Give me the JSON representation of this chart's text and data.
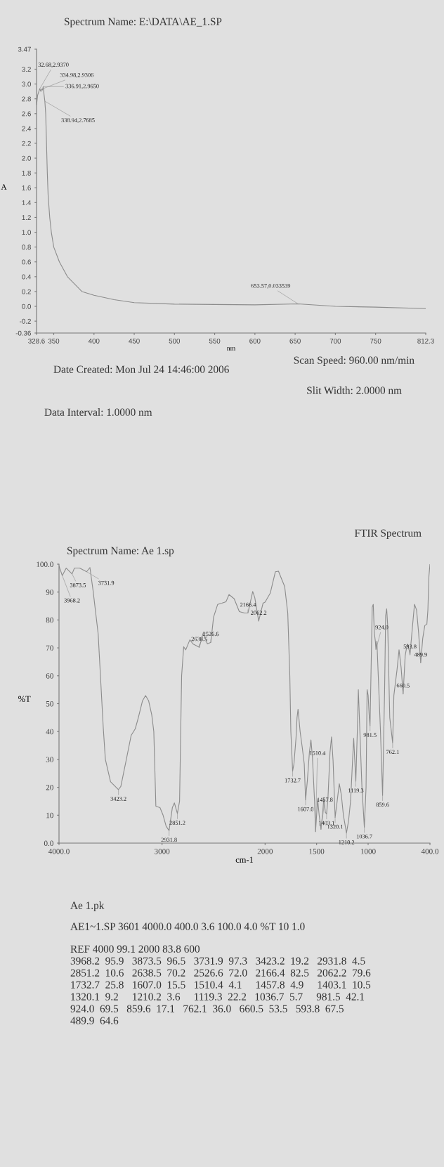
{
  "chart_data": [
    {
      "type": "line",
      "title": "Spectrum Name: E:\\DATA\\AE_1.SP",
      "xlabel": "nm",
      "ylabel": "A",
      "x": [
        328.6,
        330,
        331.5,
        332.68,
        334,
        334.98,
        336,
        336.91,
        338,
        338.94,
        340,
        341,
        342,
        343,
        345,
        347,
        350,
        357,
        367,
        385,
        400,
        425,
        450,
        500,
        550,
        600,
        653.57,
        700,
        750,
        812.3
      ],
      "series": [
        {
          "color": "#8c8c8c",
          "values": [
            2.72,
            2.85,
            2.9,
            2.937,
            2.9,
            2.9306,
            2.92,
            2.965,
            2.85,
            2.7685,
            2.6,
            2.2,
            1.8,
            1.5,
            1.2,
            1.0,
            0.8,
            0.6,
            0.4,
            0.2,
            0.15,
            0.09,
            0.05,
            0.03,
            0.025,
            0.02,
            0.033539,
            0.0,
            -0.01,
            -0.03
          ]
        }
      ],
      "xlim": [
        328.6,
        812.3
      ],
      "xticks": [
        328.6,
        350,
        400,
        450,
        500,
        550,
        600,
        650,
        700,
        750,
        812.3
      ],
      "ylim": [
        -0.36,
        3.47
      ],
      "yticks": [
        -0.36,
        -0.2,
        {
          "value": 0,
          "label": "0.0"
        },
        0.2,
        0.4,
        0.6,
        0.8,
        {
          "value": 1,
          "label": "1.0"
        },
        1.2,
        1.4,
        1.6,
        1.8,
        {
          "value": 2,
          "label": "2.0"
        },
        2.2,
        2.4,
        2.6,
        2.8,
        {
          "value": 3,
          "label": "3.0"
        },
        3.2,
        3.47
      ],
      "grid": false,
      "legend": false,
      "marker": "none",
      "line_style": "solid",
      "annotations": [
        {
          "text": "32.68,2.9370",
          "x": 332.68,
          "y": 2.937
        },
        {
          "text": "334.98,2.9306",
          "x": 334.98,
          "y": 2.9306
        },
        {
          "text": "336.91,2.9650",
          "x": 336.91,
          "y": 2.965
        },
        {
          "text": "338.94,2.7685",
          "x": 338.94,
          "y": 2.7685
        },
        {
          "text": "653.57,0.033539",
          "x": 653.57,
          "y": 0.033539
        },
        "Scan Speed: 960.00 nm/min",
        "Date Created: Mon Jul 24 14:46:00 2006",
        "Slit Width: 2.0000 nm",
        "Data Interval: 1.0000 nm"
      ]
    },
    {
      "type": "line",
      "title": "Spectrum Name: Ae 1.sp",
      "subtitle": "FTIR Spectrum",
      "xlabel": "cm-1",
      "ylabel": "%T",
      "x": [
        4000,
        3968.2,
        3930,
        3873.5,
        3850,
        3800,
        3731.9,
        3700,
        3670,
        3620,
        3570,
        3550,
        3500,
        3423.2,
        3400,
        3350,
        3300,
        3260,
        3230,
        3190,
        3160,
        3130,
        3100,
        3080,
        3060,
        3020,
        2990,
        2960,
        2931.8,
        2900,
        2880,
        2851.2,
        2830,
        2820,
        2810,
        2790,
        2770,
        2730,
        2700,
        2638.5,
        2600,
        2560,
        2526.6,
        2500,
        2460,
        2420,
        2380,
        2350,
        2300,
        2250,
        2200,
        2166.4,
        2120,
        2100,
        2062.2,
        2020,
        2000,
        1950,
        1900,
        1870,
        1840,
        1810,
        1780,
        1760,
        1750,
        1732.7,
        1720,
        1700,
        1690,
        1680,
        1660,
        1640,
        1620,
        1607.0,
        1590,
        1570,
        1555,
        1540,
        1520,
        1510.4,
        1490,
        1475,
        1457.8,
        1440,
        1430,
        1415,
        1403.1,
        1390,
        1370,
        1355,
        1340,
        1320.1,
        1300,
        1280,
        1260,
        1240,
        1210.2,
        1190,
        1170,
        1150,
        1140,
        1130,
        1119.3,
        1105,
        1095,
        1080,
        1060,
        1036.7,
        1020,
        1010,
        1000,
        990,
        981.5,
        970,
        960,
        950,
        940,
        930,
        924.0,
        915,
        880,
        859.6,
        840,
        830,
        820,
        810,
        790,
        762.1,
        750,
        740,
        720,
        700,
        680,
        660.5,
        640,
        620,
        600,
        593.8,
        570,
        550,
        530,
        510,
        489.9,
        470,
        450,
        430,
        420,
        410,
        400
      ],
      "series": [
        {
          "color": "#8c8c8c",
          "values": [
            99.3,
            95.9,
            98.6,
            96.5,
            98.6,
            98.6,
            97.3,
            98.8,
            90.7,
            75,
            41,
            30,
            22,
            19.2,
            20.3,
            29.4,
            38.6,
            41,
            45,
            51,
            52.9,
            51,
            46,
            40,
            13.2,
            12.7,
            10,
            6,
            4.5,
            12.7,
            14.4,
            10.6,
            15,
            37.6,
            60,
            70.4,
            69.3,
            72.9,
            71.4,
            70.2,
            75.4,
            71.4,
            72.0,
            81,
            85.6,
            86,
            86.5,
            89.1,
            87.6,
            83,
            82.5,
            82.5,
            90.2,
            88,
            79.6,
            86,
            86.4,
            89.6,
            97.3,
            97.5,
            94.7,
            92,
            82.5,
            60,
            40,
            25.8,
            28.4,
            37.6,
            45,
            48,
            40,
            34.5,
            28.4,
            15.5,
            22.3,
            32.5,
            37,
            30.5,
            15.2,
            4.1,
            15.7,
            10,
            4.9,
            11.2,
            16.2,
            11,
            10.5,
            16,
            32.5,
            38.1,
            29.4,
            9.2,
            15.2,
            21.3,
            17.3,
            10,
            3.6,
            8,
            15.2,
            30.5,
            37.6,
            30,
            22.2,
            40,
            55,
            40,
            20,
            5.7,
            20,
            55,
            53,
            46,
            42.1,
            65,
            84.6,
            85.6,
            75.4,
            72.4,
            69.5,
            72.4,
            40,
            17.1,
            55,
            81.5,
            84,
            78,
            45,
            36.0,
            53,
            56,
            62,
            69.3,
            63,
            53.5,
            67.3,
            71.4,
            69,
            67.5,
            77.5,
            85.6,
            83.6,
            75.4,
            64.6,
            73.4,
            78,
            78.5,
            83.6,
            95.7,
            100
          ]
        }
      ],
      "xlim": [
        4000,
        400
      ],
      "xticks": [
        {
          "value": 4000,
          "label": "4000.0"
        },
        3000,
        2000,
        1500,
        1000,
        {
          "value": 400,
          "label": "400.0"
        }
      ],
      "ylim": [
        0,
        100
      ],
      "yticks": [
        {
          "value": 0,
          "label": "0.0"
        },
        10,
        20,
        30,
        40,
        50,
        60,
        70,
        80,
        90,
        {
          "value": 100,
          "label": "100.0"
        }
      ],
      "grid": false,
      "legend": false,
      "marker": "none",
      "line_style": "solid",
      "annotations": [
        {
          "text": "3968.2",
          "x": 3968.2,
          "y": 95.9
        },
        {
          "text": "3873.5",
          "x": 3873.5,
          "y": 96.5
        },
        {
          "text": "3731.9",
          "x": 3731.9,
          "y": 97.3
        },
        {
          "text": "3423.2",
          "x": 3423.2,
          "y": 19.2
        },
        {
          "text": "2931.8",
          "x": 2931.8,
          "y": 4.5
        },
        {
          "text": "2851.2",
          "x": 2851.2,
          "y": 10.6
        },
        {
          "text": "2638.5",
          "x": 2638.5,
          "y": 70.2
        },
        {
          "text": "2526.6",
          "x": 2526.6,
          "y": 72.0
        },
        {
          "text": "2166.4",
          "x": 2166.4,
          "y": 82.5
        },
        {
          "text": "2062.2",
          "x": 2062.2,
          "y": 79.6
        },
        {
          "text": "1732.7",
          "x": 1732.7,
          "y": 25.8
        },
        {
          "text": "1607.0",
          "x": 1607.0,
          "y": 15.5
        },
        {
          "text": "1510.4",
          "x": 1510.4,
          "y": 4.1
        },
        {
          "text": "1457.8",
          "x": 1457.8,
          "y": 4.9
        },
        {
          "text": "1403.1",
          "x": 1403.1,
          "y": 10.5
        },
        {
          "text": "1320.1",
          "x": 1320.1,
          "y": 9.2
        },
        {
          "text": "1210.2",
          "x": 1210.2,
          "y": 3.6
        },
        {
          "text": "1119.3",
          "x": 1119.3,
          "y": 22.2
        },
        {
          "text": "1036.7",
          "x": 1036.7,
          "y": 5.7
        },
        {
          "text": "981.5",
          "x": 981.5,
          "y": 42.1
        },
        {
          "text": "924.0",
          "x": 924.0,
          "y": 69.5
        },
        {
          "text": "859.6",
          "x": 859.6,
          "y": 17.1
        },
        {
          "text": "762.1",
          "x": 762.1,
          "y": 36.0
        },
        {
          "text": "660.5",
          "x": 660.5,
          "y": 53.5
        },
        {
          "text": "593.8",
          "x": 593.8,
          "y": 67.5
        },
        {
          "text": "489.9",
          "x": 489.9,
          "y": 64.6
        },
        "Ae 1.pk",
        "AE1~1.SP 3601 4000.0 400.0 3.6 100.0 4.0 %T 10 1.0",
        "REF 4000 99.1 2000 83.8 600",
        "3968.2  95.9   3873.5  96.5   3731.9  97.3   3423.2  19.2   2931.8  4.5",
        "2851.2  10.6   2638.5  70.2   2526.6  72.0   2166.4  82.5   2062.2  79.6",
        "1732.7  25.8   1607.0  15.5   1510.4  4.1     1457.8  4.9     1403.1  10.5",
        "1320.1  9.2     1210.2  3.6     1119.3  22.2   1036.7  5.7     981.5  42.1",
        "924.0  69.5   859.6  17.1   762.1  36.0   660.5  53.5   593.8  67.5",
        "489.9  64.6"
      ]
    }
  ]
}
